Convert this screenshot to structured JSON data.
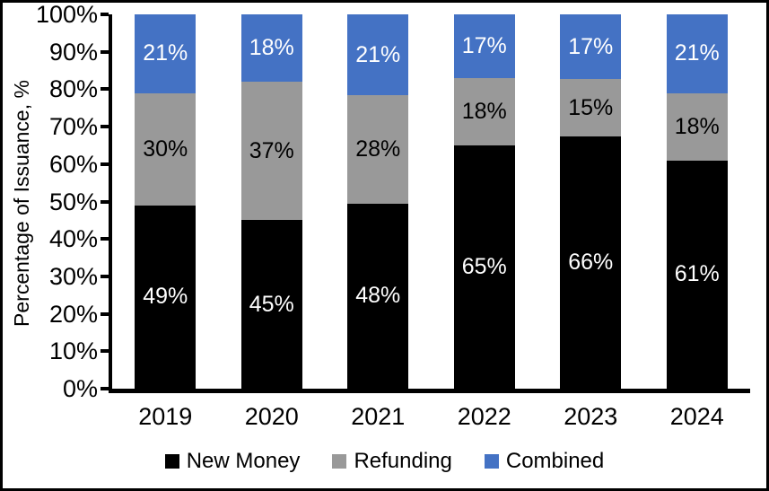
{
  "chart_data": {
    "type": "bar",
    "stacked": true,
    "title": "",
    "xlabel": "",
    "ylabel": "Percentage of Issuance, %",
    "ylim": [
      0,
      100
    ],
    "ytick_step": 10,
    "ytick_labels": [
      "0%",
      "10%",
      "20%",
      "30%",
      "40%",
      "50%",
      "60%",
      "70%",
      "80%",
      "90%",
      "100%"
    ],
    "grid": false,
    "legend_position": "bottom",
    "categories": [
      "2019",
      "2020",
      "2021",
      "2022",
      "2023",
      "2024"
    ],
    "series": [
      {
        "name": "New Money",
        "color": "#000000",
        "label_color": "#FFFFFF",
        "values": [
          49,
          45,
          48,
          65,
          66,
          61
        ],
        "labels": [
          "49%",
          "45%",
          "48%",
          "65%",
          "66%",
          "61%"
        ]
      },
      {
        "name": "Refunding",
        "color": "#999999",
        "label_color": "#000000",
        "values": [
          30,
          37,
          28,
          18,
          15,
          18
        ],
        "labels": [
          "30%",
          "37%",
          "28%",
          "18%",
          "15%",
          "18%"
        ]
      },
      {
        "name": "Combined",
        "color": "#4472C4",
        "label_color": "#FFFFFF",
        "values": [
          21,
          18,
          21,
          17,
          17,
          21
        ],
        "labels": [
          "21%",
          "18%",
          "21%",
          "17%",
          "17%",
          "21%"
        ]
      }
    ]
  }
}
